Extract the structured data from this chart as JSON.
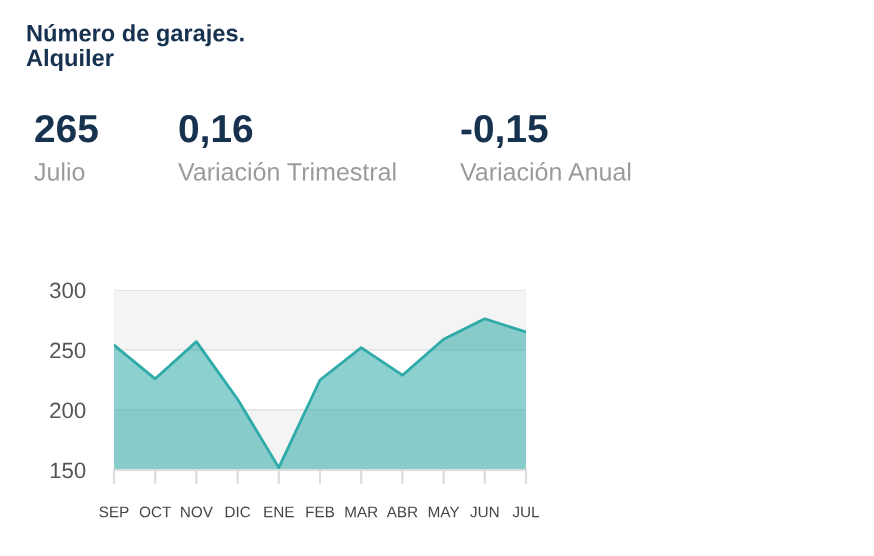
{
  "chart_data": {
    "type": "area",
    "title": "Número de garajes.\nAlquiler",
    "annotations": [
      "265",
      "Julio",
      "0,16",
      "Variación Trimestral",
      "-0,15",
      "Variación Anual"
    ],
    "categories": [
      "SEP",
      "OCT",
      "NOV",
      "DIC",
      "ENE",
      "FEB",
      "MAR",
      "ABR",
      "MAY",
      "JUN",
      "JUL"
    ],
    "series": [
      {
        "color": "#2eaaa8",
        "values": [
          254,
          226,
          257,
          209,
          152,
          225,
          252,
          229,
          259,
          276,
          265
        ]
      }
    ],
    "ylim": [
      150,
      300
    ],
    "yticks": [
      150,
      200,
      250,
      300
    ],
    "bands": [
      {
        "axis": "y",
        "from": 250,
        "to": 300,
        "color": "#f4f4f4"
      },
      {
        "axis": "y",
        "from": 150,
        "to": 200,
        "color": "#f4f4f4"
      }
    ],
    "grid": "y",
    "legend": false
  }
}
